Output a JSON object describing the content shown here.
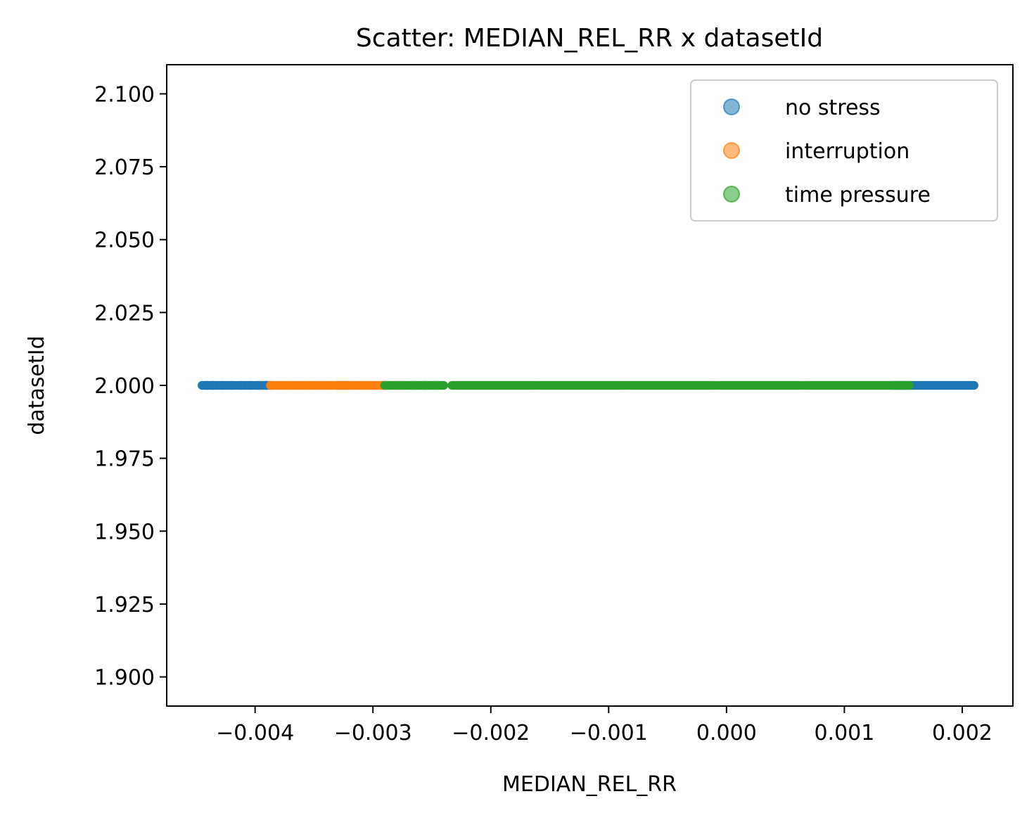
{
  "chart_data": {
    "type": "scatter",
    "title": "Scatter: MEDIAN_REL_RR x datasetId",
    "xlabel": "MEDIAN_REL_RR",
    "ylabel": "datasetId",
    "xlim": [
      -0.00475,
      0.00243
    ],
    "ylim": [
      1.89,
      2.11
    ],
    "xticks": [
      -0.004,
      -0.003,
      -0.002,
      -0.001,
      0.0,
      0.001,
      0.002
    ],
    "xtick_labels": [
      "−0.004",
      "−0.003",
      "−0.002",
      "−0.001",
      "0.000",
      "0.001",
      "0.002"
    ],
    "yticks": [
      1.9,
      1.925,
      1.95,
      1.975,
      2.0,
      2.025,
      2.05,
      2.075,
      2.1
    ],
    "ytick_labels": [
      "1.900",
      "1.925",
      "1.950",
      "1.975",
      "2.000",
      "2.025",
      "2.050",
      "2.075",
      "2.100"
    ],
    "grid": false,
    "legend_position": "top-right",
    "series": [
      {
        "name": "no stress",
        "color": "#1f77b4",
        "y": 2.0,
        "x_ranges": [
          [
            -0.00445,
            -0.00386
          ],
          [
            -0.0033,
            -0.0032
          ],
          [
            0.0014,
            0.0021
          ]
        ],
        "x_sparse": [
          -0.00441,
          -0.00436,
          -0.00428,
          -0.0042,
          -0.00412,
          -0.00404,
          -0.00397,
          -0.0039,
          0.00205,
          0.0021
        ]
      },
      {
        "name": "interruption",
        "color": "#ff7f0e",
        "y": 2.0,
        "x_ranges": [
          [
            -0.00387,
            -0.0029
          ]
        ],
        "x_sparse": [
          -0.00385,
          -0.0037,
          -0.00358,
          -0.00345,
          -0.0033,
          -0.00318,
          -0.00305,
          -0.00293
        ]
      },
      {
        "name": "time pressure",
        "color": "#2ca02c",
        "y": 2.0,
        "x_ranges": [
          [
            -0.0029,
            -0.0024
          ],
          [
            -0.00233,
            0.00155
          ]
        ],
        "x_sparse": [
          -0.0029,
          -0.00282,
          -0.00273,
          -0.00265,
          -0.00256,
          -0.00248,
          -0.0024
        ]
      }
    ]
  }
}
